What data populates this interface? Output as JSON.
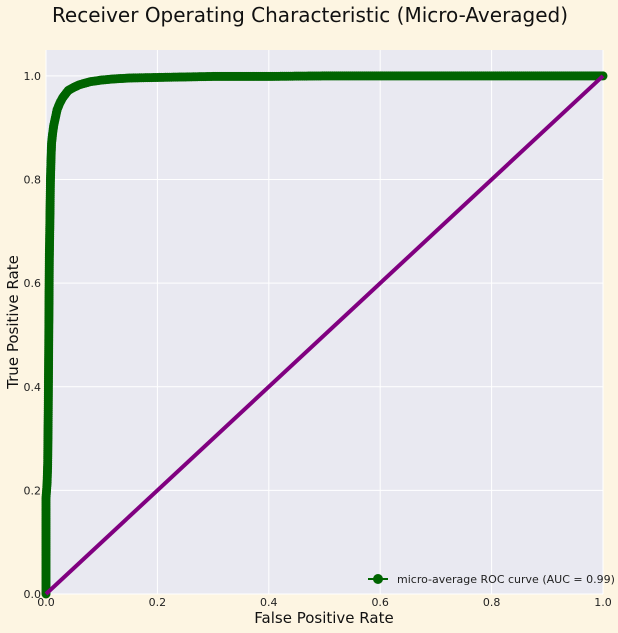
{
  "chart_data": {
    "type": "line",
    "title": "Receiver Operating Characteristic (Micro-Averaged)",
    "xlabel": "False Positive Rate",
    "ylabel": "True Positive Rate",
    "xlim": [
      0.0,
      1.0
    ],
    "ylim": [
      0.0,
      1.05
    ],
    "xticks": [
      "0.0",
      "0.2",
      "0.4",
      "0.6",
      "0.8",
      "1.0"
    ],
    "yticks": [
      "0.0",
      "0.2",
      "0.4",
      "0.6",
      "0.8",
      "1.0"
    ],
    "grid": true,
    "legend_position": "lower-right",
    "series": [
      {
        "name": "micro-average ROC curve (AUC = 0.99)",
        "color": "#006400",
        "marker": "circle",
        "x": [
          0.0,
          0.0,
          0.002,
          0.003,
          0.004,
          0.005,
          0.006,
          0.007,
          0.008,
          0.009,
          0.01,
          0.012,
          0.014,
          0.016,
          0.018,
          0.02,
          0.025,
          0.03,
          0.035,
          0.04,
          0.05,
          0.06,
          0.07,
          0.08,
          0.1,
          0.12,
          0.15,
          0.2,
          0.25,
          0.3,
          0.4,
          0.5,
          0.6,
          0.7,
          0.8,
          0.9,
          1.0
        ],
        "y": [
          0.0,
          0.185,
          0.215,
          0.25,
          0.35,
          0.5,
          0.65,
          0.72,
          0.8,
          0.84,
          0.87,
          0.89,
          0.905,
          0.915,
          0.925,
          0.935,
          0.948,
          0.958,
          0.965,
          0.972,
          0.978,
          0.983,
          0.986,
          0.989,
          0.992,
          0.994,
          0.996,
          0.997,
          0.998,
          0.999,
          0.999,
          1.0,
          1.0,
          1.0,
          1.0,
          1.0,
          1.0
        ]
      },
      {
        "name": "",
        "color": "#800080",
        "marker": "none",
        "x": [
          0.0,
          1.0
        ],
        "y": [
          0.0,
          1.0
        ]
      }
    ]
  }
}
